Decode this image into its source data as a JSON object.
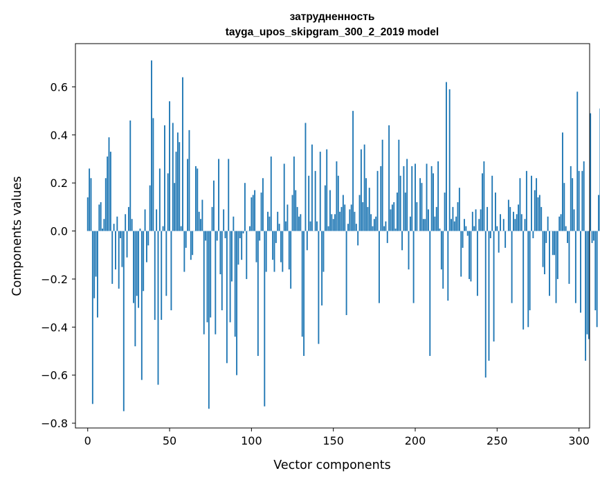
{
  "chart_data": {
    "type": "bar",
    "title": "затрудненность",
    "subtitle": "tayga_upos_skipgram_300_2_2019 model",
    "xlabel": "Vector components",
    "ylabel": "Components values",
    "xlim": [
      -7.5,
      306.5
    ],
    "ylim": [
      -0.82,
      0.78
    ],
    "xticks": [
      0,
      50,
      100,
      150,
      200,
      250,
      300
    ],
    "xtick_labels": [
      "0",
      "50",
      "100",
      "150",
      "200",
      "250",
      "300"
    ],
    "yticks": [
      -0.8,
      -0.6,
      -0.4,
      -0.2,
      0.0,
      0.2,
      0.4,
      0.6
    ],
    "ytick_labels": [
      "−0.8",
      "−0.6",
      "−0.4",
      "−0.2",
      "0.0",
      "0.2",
      "0.4",
      "0.6"
    ],
    "bar_color": "#1f77b4",
    "grid": false,
    "values": [
      0.14,
      0.26,
      0.22,
      -0.72,
      -0.28,
      -0.19,
      -0.36,
      0.11,
      0.12,
      0.01,
      0.05,
      0.22,
      0.31,
      0.39,
      0.33,
      -0.22,
      0.03,
      -0.16,
      0.06,
      -0.24,
      -0.03,
      -0.15,
      -0.75,
      0.07,
      -0.11,
      0.1,
      0.46,
      0.05,
      -0.3,
      -0.48,
      -0.27,
      -0.32,
      0.01,
      -0.62,
      -0.25,
      0.09,
      -0.13,
      -0.06,
      0.19,
      0.71,
      0.47,
      -0.37,
      0.09,
      -0.64,
      0.26,
      -0.37,
      0.02,
      0.44,
      -0.27,
      0.24,
      0.54,
      -0.33,
      0.45,
      0.2,
      0.33,
      0.41,
      0.37,
      0.02,
      0.64,
      -0.17,
      -0.07,
      0.3,
      0.42,
      -0.12,
      -0.1,
      0.0,
      0.27,
      0.26,
      0.08,
      0.05,
      0.13,
      -0.43,
      -0.04,
      -0.38,
      -0.74,
      -0.36,
      0.1,
      0.21,
      -0.43,
      -0.04,
      0.3,
      -0.18,
      -0.33,
      0.09,
      -0.03,
      -0.55,
      0.3,
      -0.38,
      -0.21,
      0.06,
      -0.44,
      -0.6,
      -0.14,
      -0.03,
      -0.12,
      -0.01,
      0.2,
      -0.2,
      0.0,
      0.02,
      0.14,
      0.15,
      0.17,
      -0.13,
      -0.52,
      -0.04,
      0.16,
      0.22,
      -0.73,
      -0.17,
      0.08,
      0.06,
      0.31,
      -0.12,
      -0.17,
      -0.05,
      0.08,
      0.03,
      -0.13,
      -0.17,
      0.28,
      0.04,
      0.11,
      -0.16,
      -0.24,
      0.15,
      0.31,
      0.17,
      0.1,
      0.06,
      0.07,
      -0.44,
      -0.52,
      0.45,
      -0.08,
      0.23,
      0.04,
      0.36,
      0.0,
      0.25,
      0.04,
      -0.47,
      0.33,
      -0.31,
      -0.17,
      0.19,
      0.34,
      0.02,
      0.17,
      0.07,
      0.05,
      0.07,
      0.29,
      0.23,
      0.08,
      0.1,
      0.15,
      0.11,
      -0.35,
      0.03,
      0.09,
      0.11,
      0.5,
      0.08,
      0.03,
      -0.06,
      0.15,
      0.34,
      0.12,
      0.36,
      0.22,
      0.1,
      0.18,
      0.07,
      0.02,
      0.05,
      0.06,
      0.25,
      -0.3,
      0.27,
      0.38,
      0.02,
      0.04,
      -0.05,
      0.44,
      0.09,
      0.11,
      0.12,
      0.01,
      0.16,
      0.38,
      0.23,
      -0.08,
      0.27,
      0.16,
      0.3,
      -0.16,
      0.06,
      0.27,
      -0.3,
      0.28,
      0.12,
      0.0,
      0.22,
      0.2,
      0.05,
      0.05,
      0.28,
      0.09,
      -0.52,
      0.27,
      0.24,
      0.06,
      0.1,
      0.29,
      0.01,
      -0.16,
      -0.24,
      0.16,
      0.62,
      -0.29,
      0.59,
      0.05,
      0.1,
      0.04,
      0.06,
      0.12,
      0.18,
      -0.19,
      -0.07,
      0.05,
      0.02,
      -0.02,
      -0.2,
      -0.21,
      0.08,
      0.02,
      0.09,
      -0.27,
      0.05,
      0.09,
      0.24,
      0.29,
      -0.61,
      0.1,
      -0.54,
      -0.03,
      0.23,
      -0.46,
      0.16,
      0.02,
      -0.09,
      0.07,
      0.0,
      0.05,
      -0.07,
      0.0,
      0.13,
      0.1,
      -0.3,
      0.08,
      0.05,
      0.07,
      0.11,
      0.22,
      0.07,
      -0.41,
      0.05,
      0.25,
      -0.4,
      -0.33,
      0.23,
      -0.03,
      0.17,
      0.22,
      0.14,
      0.15,
      0.1,
      -0.15,
      -0.18,
      -0.05,
      0.06,
      -0.27,
      0.0,
      -0.1,
      -0.1,
      -0.3,
      -0.2,
      0.06,
      0.07,
      0.41,
      0.2,
      0.02,
      -0.05,
      -0.22,
      0.27,
      0.22,
      0.09,
      -0.3,
      0.58,
      0.25,
      -0.34,
      0.25,
      0.29,
      -0.54,
      -0.43,
      -0.45,
      0.49,
      -0.05,
      -0.04,
      -0.33,
      -0.4,
      0.15,
      0.51
    ]
  }
}
